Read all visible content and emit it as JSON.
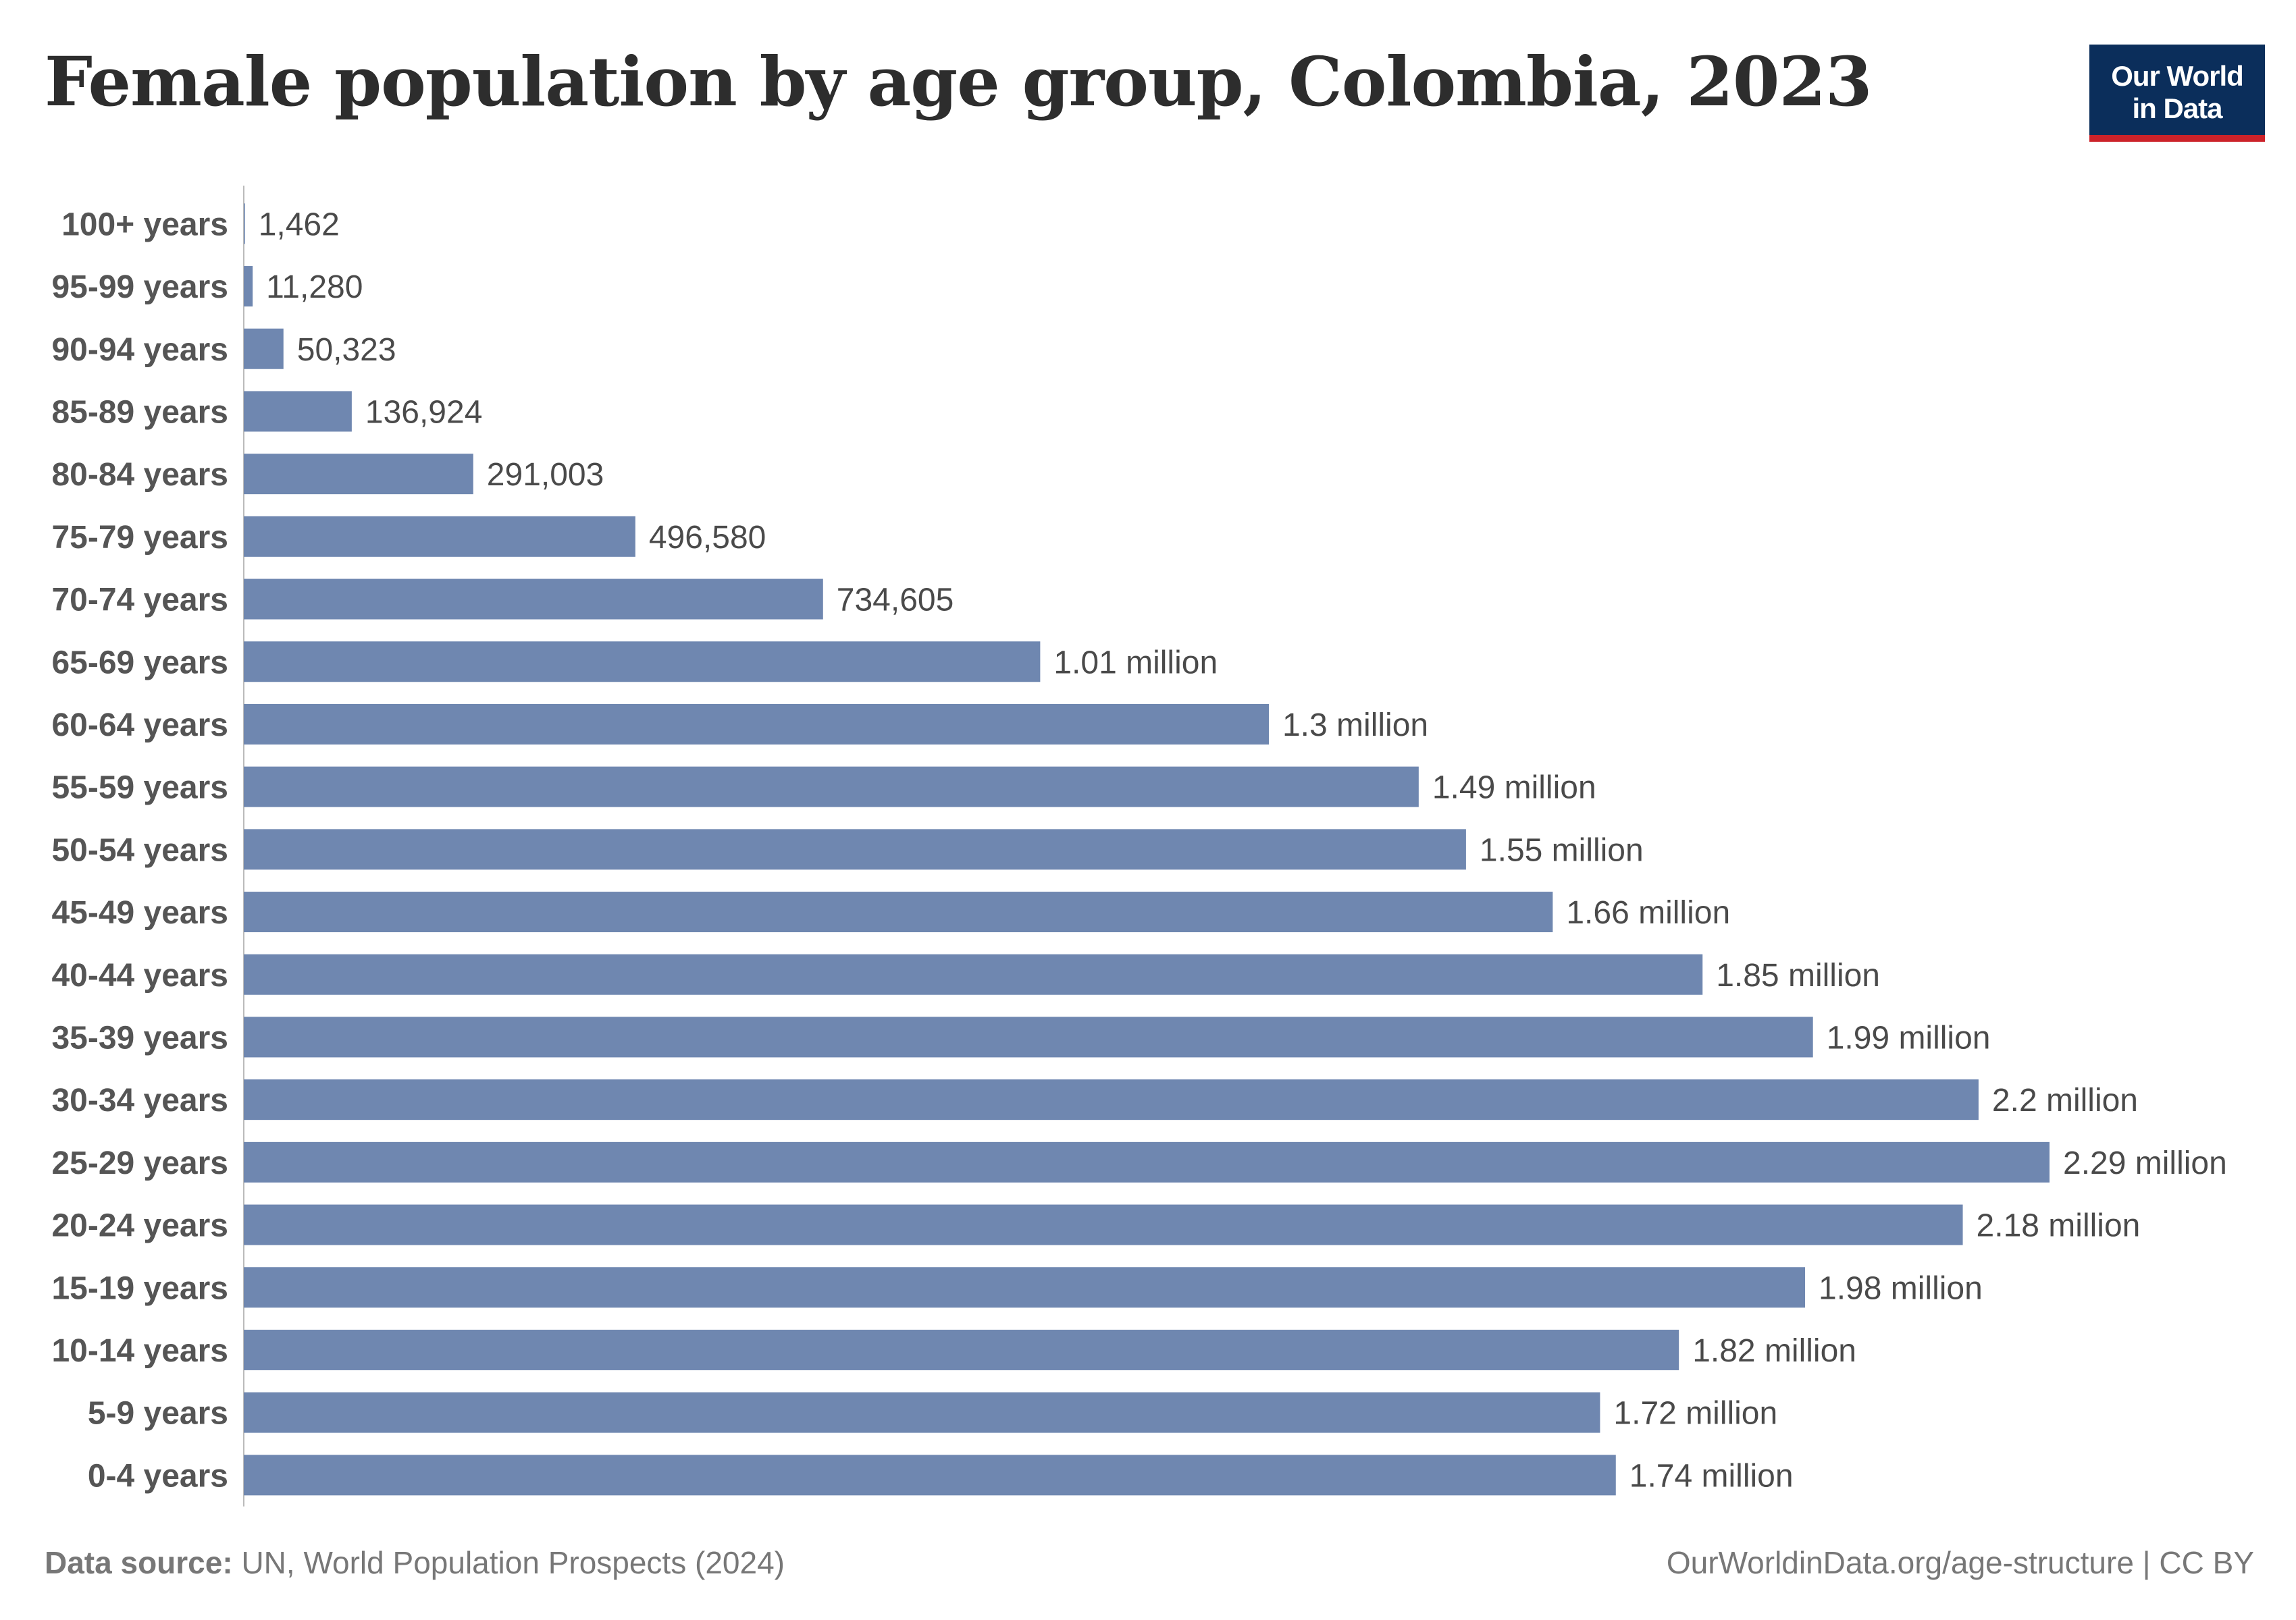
{
  "title": "Female population by age group, Colombia, 2023",
  "logo": {
    "line1": "Our World",
    "line2": "in Data"
  },
  "footer": {
    "source_label": "Data source:",
    "source_text": "UN, World Population Prospects (2024)",
    "right_text": "OurWorldinData.org/age-structure | CC BY"
  },
  "colors": {
    "bar": "#6f87b0",
    "axis": "#bbbbbb",
    "brand": "#0b2e5b",
    "brand_accent": "#cc2229"
  },
  "chart_data": {
    "type": "bar",
    "orientation": "horizontal",
    "title": "Female population by age group, Colombia, 2023",
    "categories": [
      "100+ years",
      "95-99 years",
      "90-94 years",
      "85-89 years",
      "80-84 years",
      "75-79 years",
      "70-74 years",
      "65-69 years",
      "60-64 years",
      "55-59 years",
      "50-54 years",
      "45-49 years",
      "40-44 years",
      "35-39 years",
      "30-34 years",
      "25-29 years",
      "20-24 years",
      "15-19 years",
      "10-14 years",
      "5-9 years",
      "0-4 years"
    ],
    "values": [
      1462,
      11280,
      50323,
      136924,
      291003,
      496580,
      734605,
      1010000,
      1300000,
      1490000,
      1550000,
      1660000,
      1850000,
      1990000,
      2200000,
      2290000,
      2180000,
      1980000,
      1820000,
      1720000,
      1740000
    ],
    "labels": [
      "1,462",
      "11,280",
      "50,323",
      "136,924",
      "291,003",
      "496,580",
      "734,605",
      "1.01 million",
      "1.3 million",
      "1.49 million",
      "1.55 million",
      "1.66 million",
      "1.85 million",
      "1.99 million",
      "2.2 million",
      "2.29 million",
      "2.18 million",
      "1.98 million",
      "1.82 million",
      "1.72 million",
      "1.74 million"
    ],
    "xlim": [
      0,
      2290000
    ],
    "grid": false,
    "legend": "none"
  }
}
